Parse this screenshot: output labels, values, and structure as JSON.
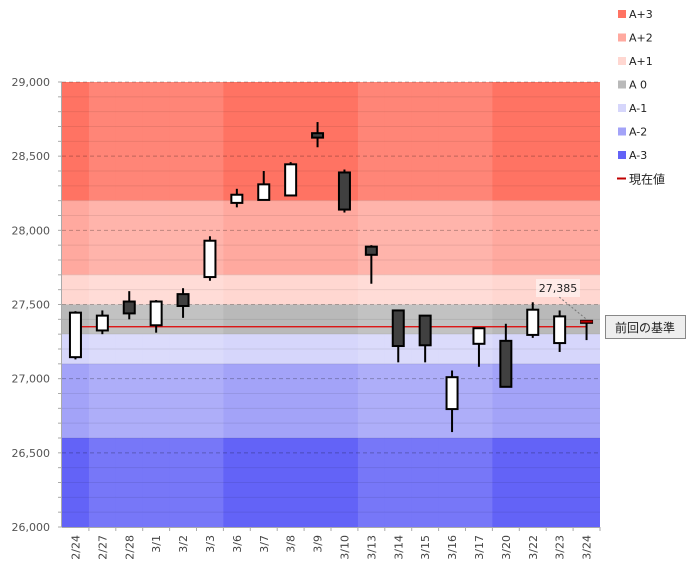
{
  "chart_data": {
    "type": "candlestick",
    "title": "",
    "ylim": [
      26000,
      29000
    ],
    "yticks": [
      26000,
      26500,
      27000,
      27500,
      28000,
      28500,
      29000
    ],
    "ytick_labels": [
      "26,000",
      "26,500",
      "27,000",
      "27,500",
      "28,000",
      "28,500",
      "29,000"
    ],
    "categories": [
      "2/24",
      "2/27",
      "2/28",
      "3/1",
      "3/2",
      "3/3",
      "3/6",
      "3/7",
      "3/8",
      "3/9",
      "3/10",
      "3/13",
      "3/14",
      "3/15",
      "3/16",
      "3/17",
      "3/20",
      "3/22",
      "3/23",
      "3/24"
    ],
    "ohlc": [
      [
        27145,
        27455,
        27130,
        27445
      ],
      [
        27325,
        27460,
        27300,
        27425
      ],
      [
        27520,
        27590,
        27400,
        27440
      ],
      [
        27360,
        27530,
        27310,
        27520
      ],
      [
        27570,
        27610,
        27410,
        27490
      ],
      [
        27685,
        27960,
        27660,
        27930
      ],
      [
        28185,
        28280,
        28155,
        28240
      ],
      [
        28205,
        28400,
        28205,
        28310
      ],
      [
        28235,
        28460,
        28235,
        28445
      ],
      [
        28655,
        28730,
        28560,
        28625
      ],
      [
        28390,
        28410,
        28120,
        28140
      ],
      [
        27890,
        27900,
        27640,
        27835
      ],
      [
        27460,
        27460,
        27110,
        27220
      ],
      [
        27425,
        27425,
        27110,
        27225
      ],
      [
        26795,
        27055,
        26640,
        27010
      ],
      [
        27235,
        27340,
        27080,
        27340
      ],
      [
        27255,
        27370,
        26945,
        26945
      ],
      [
        27295,
        27515,
        27275,
        27465
      ],
      [
        27240,
        27460,
        27180,
        27420
      ],
      [
        27390,
        27390,
        27260,
        27385
      ]
    ],
    "bands": [
      {
        "name": "A+3",
        "from": 28200,
        "to": 29000,
        "color": "#ff7363"
      },
      {
        "name": "A+2",
        "from": 27700,
        "to": 28200,
        "color": "#ffa99f"
      },
      {
        "name": "A+1",
        "from": 27500,
        "to": 27700,
        "color": "#ffd7d1"
      },
      {
        "name": "A 0",
        "from": 27300,
        "to": 27500,
        "color": "#b9b9b9"
      },
      {
        "name": "A-1",
        "from": 27100,
        "to": 27300,
        "color": "#d6d6fb"
      },
      {
        "name": "A-2",
        "from": 26600,
        "to": 27100,
        "color": "#a3a3f8"
      },
      {
        "name": "A-3",
        "from": 26000,
        "to": 26600,
        "color": "#6363f7"
      }
    ],
    "shaded_weeks": [
      [
        0,
        0
      ],
      [
        6,
        10
      ],
      [
        16,
        19
      ]
    ],
    "reference_line": {
      "value": 27350,
      "label": "前回の基準",
      "color": "#e00000"
    },
    "current_value": {
      "value": 27385,
      "label": "27,385"
    },
    "legend": {
      "position": "right",
      "current_label": "現在値",
      "current_color": "#c00000"
    }
  }
}
